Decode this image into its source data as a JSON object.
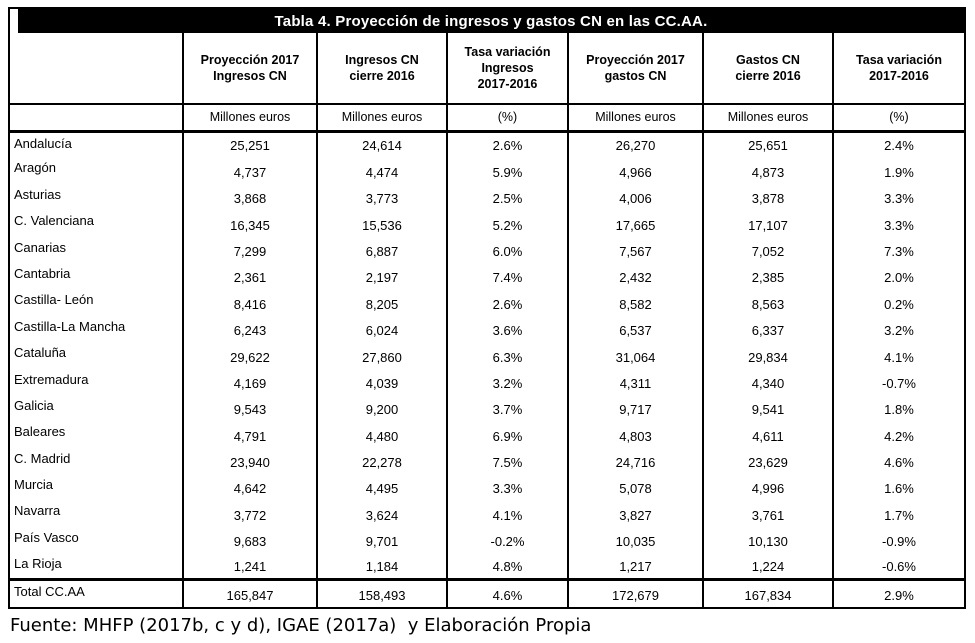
{
  "table": {
    "title": "Tabla 4. Proyección de ingresos y gastos CN en las CC.AA.",
    "title_bar": {
      "background": "#000000",
      "text_color": "#ffffff"
    },
    "header_lines": [
      "",
      "Proyección 2017\nIngresos CN",
      "Ingresos CN\ncierre 2016",
      "Tasa variación\nIngresos\n2017-2016",
      "Proyección 2017\ngastos CN",
      "Gastos CN\ncierre 2016",
      "Tasa variación\n2017-2016"
    ],
    "units": [
      "",
      "Millones euros",
      "Millones euros",
      "(%)",
      "Millones euros",
      "Millones euros",
      "(%)"
    ],
    "rows": [
      {
        "region": "Andalucía",
        "values": [
          "25,251",
          "24,614",
          "2.6%",
          "26,270",
          "25,651",
          "2.4%"
        ]
      },
      {
        "region": "Aragón",
        "values": [
          "4,737",
          "4,474",
          "5.9%",
          "4,966",
          "4,873",
          "1.9%"
        ]
      },
      {
        "region": "Asturias",
        "values": [
          "3,868",
          "3,773",
          "2.5%",
          "4,006",
          "3,878",
          "3.3%"
        ]
      },
      {
        "region": "C. Valenciana",
        "values": [
          "16,345",
          "15,536",
          "5.2%",
          "17,665",
          "17,107",
          "3.3%"
        ]
      },
      {
        "region": "Canarias",
        "values": [
          "7,299",
          "6,887",
          "6.0%",
          "7,567",
          "7,052",
          "7.3%"
        ]
      },
      {
        "region": "Cantabria",
        "values": [
          "2,361",
          "2,197",
          "7.4%",
          "2,432",
          "2,385",
          "2.0%"
        ]
      },
      {
        "region": "Castilla- León",
        "values": [
          "8,416",
          "8,205",
          "2.6%",
          "8,582",
          "8,563",
          "0.2%"
        ]
      },
      {
        "region": "Castilla-La Mancha",
        "values": [
          "6,243",
          "6,024",
          "3.6%",
          "6,537",
          "6,337",
          "3.2%"
        ]
      },
      {
        "region": "Cataluña",
        "values": [
          "29,622",
          "27,860",
          "6.3%",
          "31,064",
          "29,834",
          "4.1%"
        ]
      },
      {
        "region": "Extremadura",
        "values": [
          "4,169",
          "4,039",
          "3.2%",
          "4,311",
          "4,340",
          "-0.7%"
        ]
      },
      {
        "region": "Galicia",
        "values": [
          "9,543",
          "9,200",
          "3.7%",
          "9,717",
          "9,541",
          "1.8%"
        ]
      },
      {
        "region": "Baleares",
        "values": [
          "4,791",
          "4,480",
          "6.9%",
          "4,803",
          "4,611",
          "4.2%"
        ]
      },
      {
        "region": "C. Madrid",
        "values": [
          "23,940",
          "22,278",
          "7.5%",
          "24,716",
          "23,629",
          "4.6%"
        ]
      },
      {
        "region": "Murcia",
        "values": [
          "4,642",
          "4,495",
          "3.3%",
          "5,078",
          "4,996",
          "1.6%"
        ]
      },
      {
        "region": "Navarra",
        "values": [
          "3,772",
          "3,624",
          "4.1%",
          "3,827",
          "3,761",
          "1.7%"
        ]
      },
      {
        "region": "País Vasco",
        "values": [
          "9,683",
          "9,701",
          "-0.2%",
          "10,035",
          "10,130",
          "-0.9%"
        ]
      },
      {
        "region": "La Rioja",
        "values": [
          "1,241",
          "1,184",
          "4.8%",
          "1,217",
          "1,224",
          "-0.6%"
        ]
      }
    ],
    "total": {
      "region": "Total CC.AA",
      "values": [
        "165,847",
        "158,493",
        "4.6%",
        "172,679",
        "167,834",
        "2.9%"
      ]
    }
  },
  "source": "Fuente: MHFP (2017b, c y d), IGAE (2017a)  y Elaboración Propia"
}
